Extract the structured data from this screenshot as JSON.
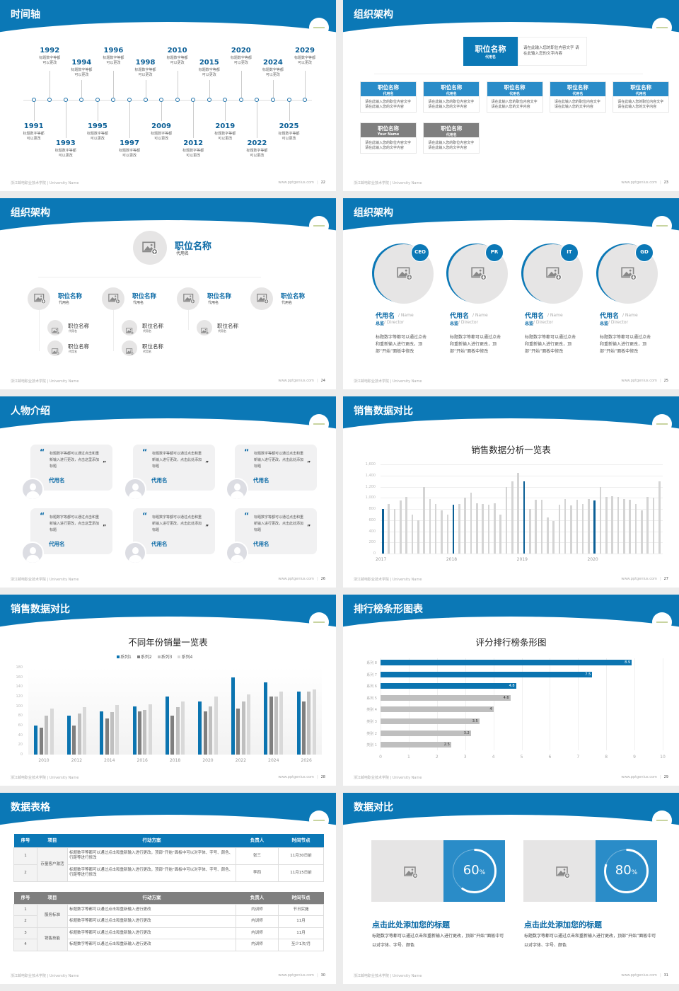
{
  "accent": "#0b78b6",
  "colors": {
    "blue": "#0b78b6",
    "light_blue": "#2a8cc8",
    "gray_header": "#7f7f7f",
    "placeholder": "#e6e5e5"
  },
  "footer": {
    "left": "浙江邮电职业技术学院 | University Name",
    "site": "www.pptgenius.com"
  },
  "slides": [
    {
      "title": "时间轴",
      "page": "22",
      "events": [
        {
          "year": "1991",
          "desc": "标题数字等都可以更改"
        },
        {
          "year": "1992",
          "desc": "标题数字等都可以更改"
        },
        {
          "year": "1993",
          "desc": "标题数字等都可以更改"
        },
        {
          "year": "1994",
          "desc": "标题数字等都可以更改"
        },
        {
          "year": "1995",
          "desc": "标题数字等都可以更改"
        },
        {
          "year": "1996",
          "desc": "标题数字等都可以更改"
        },
        {
          "year": "1997",
          "desc": "标题数字等都可以更改"
        },
        {
          "year": "1998",
          "desc": "标题数字等都可以更改"
        },
        {
          "year": "2009",
          "desc": "标题数字等都可以更改"
        },
        {
          "year": "2010",
          "desc": "标题数字等都可以更改"
        },
        {
          "year": "2012",
          "desc": "标题数字等都可以更改"
        },
        {
          "year": "2015",
          "desc": "标题数字等都可以更改"
        },
        {
          "year": "2019",
          "desc": "标题数字等都可以更改"
        },
        {
          "year": "2020",
          "desc": "标题数字等都可以更改"
        },
        {
          "year": "2022",
          "desc": "标题数字等都可以更改"
        },
        {
          "year": "2024",
          "desc": "标题数字等都可以更改"
        },
        {
          "year": "2025",
          "desc": "标题数字等都可以更改"
        },
        {
          "year": "2029",
          "desc": "标题数字等都可以更改"
        }
      ]
    },
    {
      "title": "组织架构",
      "page": "23",
      "top": {
        "title": "职位名称",
        "sub": "代用名",
        "text": "请在此输入您的职位内容文字 请在此输入您的文字内容"
      },
      "boxes": [
        {
          "title": "职位名称",
          "sub": "代用名",
          "text": "请在此输入您的职位内容文字请在此输入您的文字内容",
          "color": "blue"
        },
        {
          "title": "职位名称",
          "sub": "代用名",
          "text": "请在此输入您的职位内容文字请在此输入您的文字内容",
          "color": "blue"
        },
        {
          "title": "职位名称",
          "sub": "代用名",
          "text": "请在此输入您的职位内容文字请在此输入您的文字内容",
          "color": "blue"
        },
        {
          "title": "职位名称",
          "sub": "代用名",
          "text": "请在此输入您的职位内容文字请在此输入您的文字内容",
          "color": "blue"
        },
        {
          "title": "职位名称",
          "sub": "代用名",
          "text": "请在此输入您的职位内容文字请在此输入您的文字内容",
          "color": "blue"
        },
        {
          "title": "职位名称",
          "sub": "Your Name",
          "text": "请在此输入您的职位内容文字请在此输入您的文字内容",
          "color": "gray"
        },
        {
          "title": "职位名称",
          "sub": "代用名",
          "text": "请在此输入您的职位内容文字请在此输入您的文字内容",
          "color": "gray"
        }
      ]
    },
    {
      "title": "组织架构",
      "page": "24",
      "top": {
        "title": "职位名称",
        "sub": "代用名"
      },
      "groups": [
        {
          "title": "职位名称",
          "sub": "代用名",
          "children": [
            {
              "title": "职位名称",
              "sub": "代用名"
            },
            {
              "title": "职位名称",
              "sub": "代用名"
            }
          ]
        },
        {
          "title": "职位名称",
          "sub": "代用名",
          "children": [
            {
              "title": "职位名称",
              "sub": "代用名"
            },
            {
              "title": "职位名称",
              "sub": "代用名"
            }
          ]
        },
        {
          "title": "职位名称",
          "sub": "代用名",
          "children": [
            {
              "title": "职位名称",
              "sub": "代用名"
            }
          ]
        },
        {
          "title": "职位名称",
          "sub": "代用名",
          "children": []
        }
      ]
    },
    {
      "title": "组织架构",
      "page": "25",
      "people": [
        {
          "badge": "CEO",
          "name": "代用名",
          "name_en": "/ Name",
          "role": "总监",
          "role_en": "/  Director",
          "desc": "标题数字等都可以通过点击和重新输入进行更改，顶部“开始”面板中修改"
        },
        {
          "badge": "PR",
          "name": "代用名",
          "name_en": "/ Name",
          "role": "总监",
          "role_en": "/  Director",
          "desc": "标题数字等都可以通过点击和重新输入进行更改，顶部“开始”面板中修改"
        },
        {
          "badge": "IT",
          "name": "代用名",
          "name_en": "/ Name",
          "role": "总监",
          "role_en": "/  Director",
          "desc": "标题数字等都可以通过点击和重新输入进行更改，顶部“开始”面板中修改"
        },
        {
          "badge": "GD",
          "name": "代用名",
          "name_en": "/ Name",
          "role": "总监",
          "role_en": "/  Director",
          "desc": "标题数字等都可以通过点击和重新输入进行更改，顶部“开始”面板中修改"
        }
      ]
    },
    {
      "title": "人物介绍",
      "page": "26",
      "cards": [
        {
          "quote": "标题数字等都可以通过点击和重新输入进行更改，点击这里添加标题",
          "name": "代用名"
        },
        {
          "quote": "标题数字等都可以通过点击和重新输入进行更改，点击此处添加标题",
          "name": "代用名"
        },
        {
          "quote": "标题数字等都可以通过点击和重新输入进行更改，点击此处添加标题",
          "name": "代用名"
        },
        {
          "quote": "标题数字等都可以通过点击和重新输入进行更改，点击这里添加标题",
          "name": "代用名"
        },
        {
          "quote": "标题数字等都可以通过点击和重新输入进行更改，点击此处添加标题",
          "name": "代用名"
        },
        {
          "quote": "标题数字等都可以通过点击和重新输入进行更改，点击此处添加标题",
          "name": "代用名"
        }
      ]
    },
    {
      "title": "销售数据对比",
      "page": "27",
      "chart": 0
    },
    {
      "title": "销售数据对比",
      "page": "28",
      "chart": 1
    },
    {
      "title": "排行榜条形图表",
      "page": "29",
      "chart": 2
    },
    {
      "title": "数据表格",
      "page": "30",
      "tables": [
        {
          "header_color": "#0b78b6",
          "headers": [
            "序号",
            "项目",
            "行动方案",
            "负责人",
            "时间节点"
          ],
          "groups": [
            {
              "item": "存量客户激活",
              "rows": [
                {
                  "no": "1",
                  "plan": "标题数字等都可以通过点击和重新输入进行更改，顶部“开始”面板中可以对字体、字号、颜色、行距等进行修改",
                  "owner": "张三",
                  "time": "11月30日前"
                },
                {
                  "no": "2",
                  "plan": "标题数字等都可以通过点击和重新输入进行更改，顶部“开始”面板中可以对字体、字号、颜色、行距等进行修改",
                  "owner": "李四",
                  "time": "11月15日前"
                }
              ]
            }
          ]
        },
        {
          "header_color": "#7f7f7f",
          "headers": [
            "序号",
            "项目",
            "行动方案",
            "负责人",
            "时间节点"
          ],
          "groups": [
            {
              "item": "服务标准",
              "rows": [
                {
                  "no": "1",
                  "plan": "标题数字等都可以通过点击和重新输入进行更改",
                  "owner": "内训师",
                  "time": "节日实施"
                },
                {
                  "no": "2",
                  "plan": "标题数字等都可以通过点击和重新输入进行更改",
                  "owner": "内训师",
                  "time": "11月"
                }
              ]
            },
            {
              "item": "销售技能",
              "rows": [
                {
                  "no": "3",
                  "plan": "标题数字等都可以通过点击和重新输入进行更改",
                  "owner": "内训师",
                  "time": "11月"
                },
                {
                  "no": "4",
                  "plan": "标题数字等都可以通过点击和重新输入进行更改",
                  "owner": "内训师",
                  "time": "至少1次/月"
                }
              ]
            }
          ]
        }
      ]
    },
    {
      "title": "数据对比",
      "page": "31",
      "items": [
        {
          "value": 60,
          "label": "60",
          "unit": "%",
          "title": "点击此处添加您的标题",
          "desc": "标题数字等都可以通过点击和重新输入进行更改，顶部“开始”面板中可以对字体、字号、颜色"
        },
        {
          "value": 80,
          "label": "80",
          "unit": "%",
          "title": "点击此处添加您的标题",
          "desc": "标题数字等都可以通过点击和重新输入进行更改，顶部“开始”面板中可以对字体、字号、颜色"
        }
      ]
    }
  ],
  "chart_data": [
    {
      "type": "bar",
      "title": "销售数据分析一览表",
      "ylim": [
        0,
        1600
      ],
      "yticks": [
        "0",
        "200",
        "400",
        "600",
        "800",
        "1,000",
        "1,200",
        "1,400",
        "1,600"
      ],
      "x_labels": [
        "2017",
        "2018",
        "2019",
        "2020"
      ],
      "grid": true,
      "values": [
        800,
        890,
        800,
        950,
        1020,
        700,
        600,
        1200,
        980,
        890,
        780,
        700,
        880,
        890,
        1000,
        1090,
        900,
        890,
        880,
        900,
        700,
        1200,
        1300,
        1450,
        1300,
        800,
        960,
        970,
        650,
        580,
        870,
        980,
        860,
        960,
        890,
        980,
        950,
        1200,
        1020,
        1030,
        1020,
        980,
        970,
        890,
        780,
        1020,
        1000,
        1300
      ],
      "highlight_color": "#0b5f96",
      "bar_color": "#d4d4d4"
    },
    {
      "type": "bar",
      "title": "不同年份销量一览表",
      "ylim": [
        0,
        180
      ],
      "yticks": [
        "0",
        "20",
        "40",
        "60",
        "80",
        "100",
        "120",
        "140",
        "160",
        "180"
      ],
      "categories": [
        "2010",
        "2012",
        "2014",
        "2016",
        "2018",
        "2020",
        "2022",
        "2024",
        "2026"
      ],
      "legend": "top",
      "series": [
        {
          "name": "系列1",
          "color": "#0b74b0",
          "values": [
            60,
            80,
            90,
            100,
            120,
            110,
            160,
            150,
            130
          ]
        },
        {
          "name": "系列2",
          "color": "#7f7f7f",
          "values": [
            55,
            60,
            75,
            90,
            80,
            90,
            95,
            120,
            110
          ]
        },
        {
          "name": "系列3",
          "color": "#bfbfbf",
          "values": [
            80,
            85,
            88,
            92,
            98,
            100,
            110,
            120,
            130
          ]
        },
        {
          "name": "系列4",
          "color": "#d9d9d9",
          "values": [
            95,
            98,
            102,
            104,
            110,
            120,
            125,
            130,
            135
          ]
        }
      ]
    },
    {
      "type": "bar",
      "orientation": "horizontal",
      "title": "评分排行榜条形图",
      "xlim": [
        0,
        10
      ],
      "xticks": [
        "0",
        "1",
        "2",
        "3",
        "4",
        "5",
        "6",
        "7",
        "8",
        "9",
        "10"
      ],
      "categories": [
        "系列 8",
        "系列 7",
        "系列 6",
        "系列 5",
        "类别 4",
        "类别 3",
        "类别 2",
        "类别 1"
      ],
      "values": [
        8.9,
        7.5,
        4.8,
        4.6,
        4,
        3.5,
        3.2,
        2.5
      ],
      "labels": [
        "8.9",
        "7.5",
        "4.8",
        "4.6",
        "4",
        "3.5",
        "3.2",
        "2.5"
      ],
      "colors": [
        "#0b74b0",
        "#0b74b0",
        "#0b74b0",
        "#bfbfbf",
        "#bfbfbf",
        "#bfbfbf",
        "#bfbfbf",
        "#bfbfbf"
      ]
    }
  ]
}
